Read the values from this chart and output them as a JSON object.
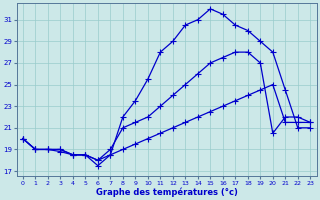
{
  "xlabel": "Graphe des températures (°c)",
  "bg_color": "#cce8e8",
  "grid_color": "#99cccc",
  "line_color": "#0000cc",
  "xlim": [
    -0.5,
    23.5
  ],
  "ylim": [
    16.5,
    32.5
  ],
  "xticks": [
    0,
    1,
    2,
    3,
    4,
    5,
    6,
    7,
    8,
    9,
    10,
    11,
    12,
    13,
    14,
    15,
    16,
    17,
    18,
    19,
    20,
    21,
    22,
    23
  ],
  "yticks": [
    17,
    19,
    21,
    23,
    25,
    27,
    29,
    31
  ],
  "series1_x": [
    0,
    1,
    2,
    3,
    4,
    5,
    6,
    7,
    8,
    9,
    10,
    11,
    12,
    13,
    14,
    15,
    16,
    17,
    18,
    19,
    20,
    21,
    22,
    23
  ],
  "series1_y": [
    20,
    19,
    19,
    19,
    18.5,
    18.5,
    17.5,
    18.5,
    22,
    23.5,
    25.5,
    28,
    29,
    30.5,
    31,
    32,
    31.5,
    30.5,
    30,
    29,
    28,
    24.5,
    21,
    21
  ],
  "series2_x": [
    0,
    1,
    2,
    3,
    4,
    5,
    6,
    7,
    8,
    9,
    10,
    11,
    12,
    13,
    14,
    15,
    16,
    17,
    18,
    19,
    20,
    21,
    22,
    23
  ],
  "series2_y": [
    20,
    19,
    19,
    19,
    18.5,
    18.5,
    18,
    19,
    21,
    21.5,
    22,
    23,
    24,
    25,
    26,
    27,
    27.5,
    28,
    28,
    27,
    20.5,
    22,
    22,
    21.5
  ],
  "series3_x": [
    0,
    1,
    2,
    3,
    4,
    5,
    6,
    7,
    8,
    9,
    10,
    11,
    12,
    13,
    14,
    15,
    16,
    17,
    18,
    19,
    20,
    21,
    22,
    23
  ],
  "series3_y": [
    20,
    19,
    19,
    18.8,
    18.5,
    18.5,
    18,
    18.5,
    19,
    19.5,
    20,
    20.5,
    21,
    21.5,
    22,
    22.5,
    23,
    23.5,
    24,
    24.5,
    25,
    21.5,
    21.5,
    21.5
  ],
  "marker_size": 2.5,
  "linewidth": 0.9,
  "tick_fontsize": 4.5,
  "xlabel_fontsize": 6.0
}
